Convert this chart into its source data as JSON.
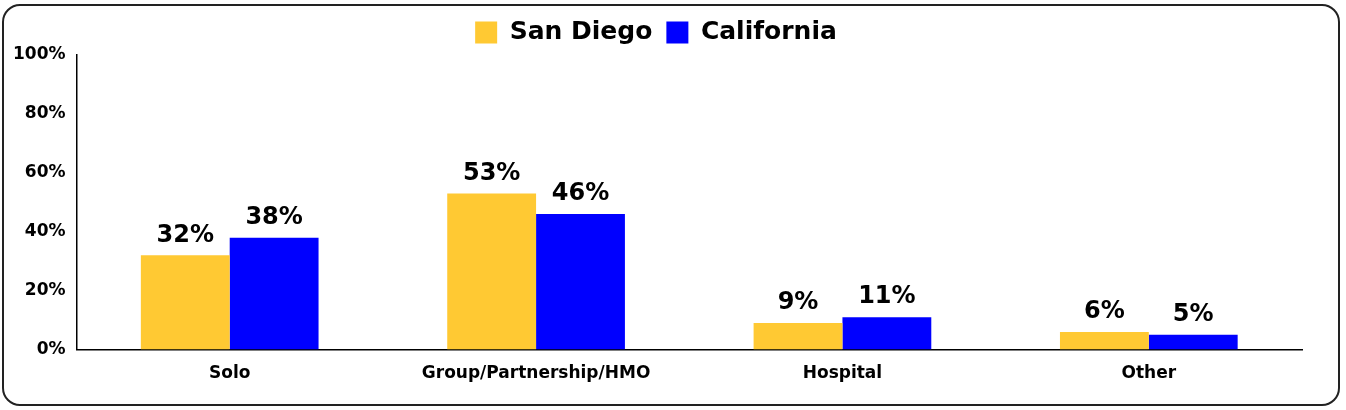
{
  "chart_data": {
    "type": "bar",
    "categories": [
      "Solo",
      "Group/Partnership/HMO",
      "Hospital",
      "Other"
    ],
    "series": [
      {
        "name": "San Diego",
        "color": "#ffc933",
        "values": [
          32,
          53,
          9,
          6
        ],
        "value_labels": [
          "32%",
          "53%",
          "9%",
          "6%"
        ]
      },
      {
        "name": "California",
        "color": "#0000ff",
        "values": [
          38,
          46,
          11,
          5
        ],
        "value_labels": [
          "38%",
          "46%",
          "11%",
          "5%"
        ]
      }
    ],
    "ylim": [
      0,
      100
    ],
    "yticks": [
      {
        "value": 0,
        "label": "0%"
      },
      {
        "value": 20,
        "label": "20%"
      },
      {
        "value": 40,
        "label": "40%"
      },
      {
        "value": 60,
        "label": "60%"
      },
      {
        "value": 80,
        "label": "80%"
      },
      {
        "value": 100,
        "label": "100%"
      }
    ],
    "grid": false,
    "legend": "top"
  }
}
